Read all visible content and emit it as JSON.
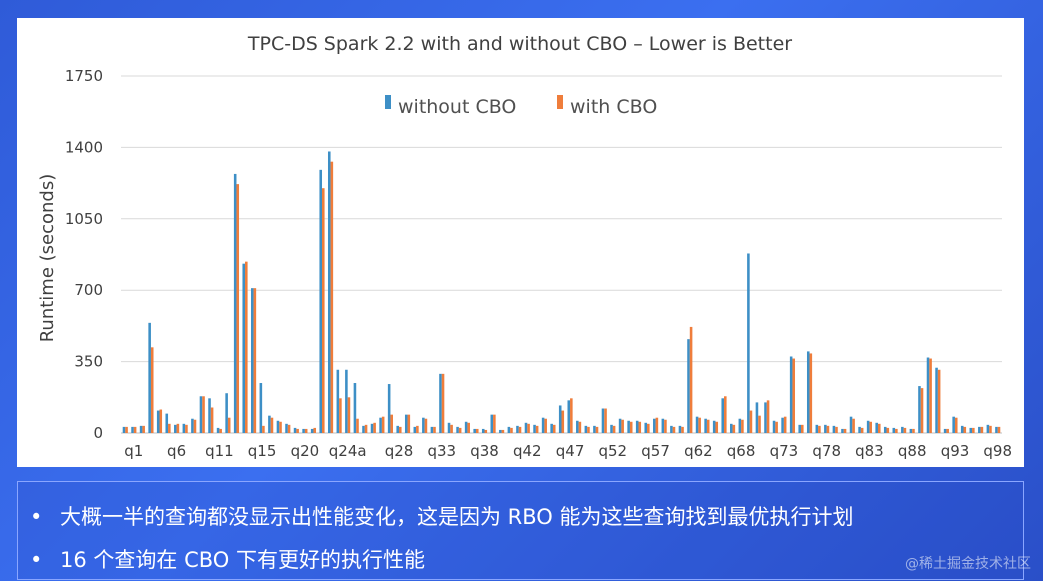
{
  "chart_data": {
    "type": "bar",
    "title": "TPC-DS Spark 2.2 with and without CBO – Lower is Better",
    "xlabel": "",
    "ylabel": "Runtime (seconds)",
    "ylim": [
      0,
      1750
    ],
    "yticks": [
      0,
      350,
      700,
      1050,
      1400,
      1750
    ],
    "legend": "top-center",
    "colors": {
      "without": "#3d8fc6",
      "with": "#ef7d3b"
    },
    "tick_labels": [
      "q1",
      "q6",
      "q11",
      "q15",
      "q20",
      "q24a",
      "q28",
      "q33",
      "q38",
      "q42",
      "q47",
      "q52",
      "q57",
      "q62",
      "q68",
      "q73",
      "q78",
      "q83",
      "q88",
      "q93",
      "q98"
    ],
    "tick_indices": [
      1,
      6,
      11,
      16,
      21,
      26,
      32,
      37,
      42,
      47,
      52,
      57,
      62,
      67,
      72,
      77,
      82,
      87,
      92,
      97,
      102
    ],
    "series": [
      {
        "name": "without CBO",
        "values": [
          30,
          30,
          35,
          540,
          110,
          95,
          40,
          45,
          70,
          180,
          170,
          25,
          195,
          1270,
          830,
          710,
          245,
          85,
          60,
          45,
          25,
          20,
          20,
          1290,
          1380,
          310,
          310,
          245,
          35,
          45,
          75,
          240,
          35,
          90,
          30,
          75,
          30,
          290,
          50,
          30,
          55,
          20,
          20,
          90,
          15,
          30,
          35,
          50,
          40,
          75,
          45,
          135,
          160,
          60,
          35,
          35,
          120,
          40,
          70,
          60,
          60,
          50,
          70,
          70,
          35,
          35,
          460,
          80,
          70,
          60,
          170,
          45,
          70,
          880,
          150,
          150,
          60,
          75,
          375,
          40,
          400,
          40,
          40,
          35,
          20,
          80,
          30,
          60,
          50,
          30,
          25,
          30,
          20,
          230,
          370,
          320,
          20,
          80,
          35,
          25,
          30,
          40,
          30
        ]
      },
      {
        "name": "with CBO",
        "values": [
          30,
          30,
          35,
          420,
          115,
          45,
          45,
          40,
          65,
          180,
          125,
          20,
          75,
          1220,
          840,
          710,
          35,
          75,
          55,
          40,
          20,
          20,
          25,
          1200,
          1330,
          170,
          175,
          70,
          40,
          50,
          80,
          90,
          30,
          90,
          35,
          70,
          30,
          290,
          40,
          25,
          50,
          20,
          15,
          90,
          15,
          25,
          30,
          45,
          35,
          70,
          40,
          110,
          170,
          55,
          30,
          30,
          120,
          35,
          65,
          55,
          55,
          45,
          75,
          65,
          30,
          30,
          520,
          75,
          65,
          55,
          180,
          40,
          65,
          110,
          85,
          160,
          55,
          80,
          365,
          40,
          390,
          35,
          35,
          30,
          20,
          70,
          25,
          55,
          45,
          25,
          20,
          25,
          20,
          220,
          365,
          310,
          20,
          75,
          30,
          25,
          30,
          35,
          30
        ]
      }
    ]
  },
  "notes": [
    "大概一半的查询都没显示出性能变化，这是因为 RBO 能为这些查询找到最优执行计划",
    "16 个查询在 CBO 下有更好的执行性能"
  ],
  "bullet": "•",
  "watermark": "@稀土掘金技术社区"
}
